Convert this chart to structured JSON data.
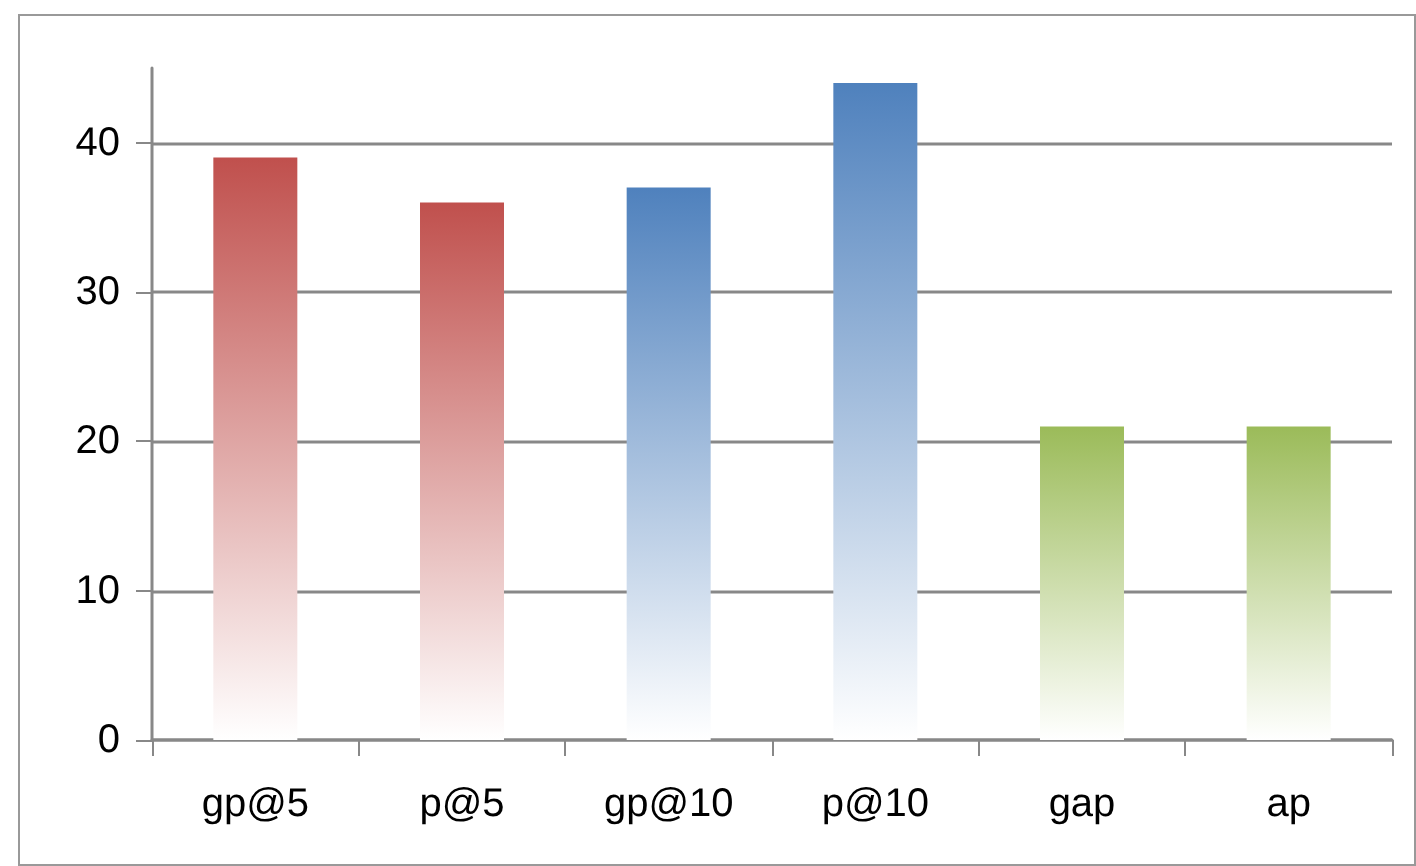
{
  "chart_data": {
    "type": "bar",
    "categories": [
      "gp@5",
      "p@5",
      "gp@10",
      "p@10",
      "gap",
      "ap"
    ],
    "values": [
      39,
      36,
      37,
      44,
      21,
      21
    ],
    "colors": [
      "#c0504d",
      "#c0504d",
      "#4f81bd",
      "#4f81bd",
      "#9bbb59",
      "#9bbb59"
    ],
    "ylim": [
      0,
      45
    ],
    "yticks": [
      0,
      10,
      20,
      30,
      40
    ],
    "grid": "y"
  }
}
